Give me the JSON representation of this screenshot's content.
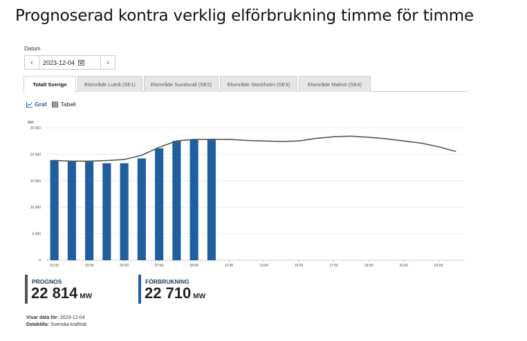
{
  "page": {
    "title": "Prognoserad kontra verklig elförbrukning timme för timme"
  },
  "date_picker": {
    "label": "Datum",
    "value": "2023-12-04",
    "prev_icon": "chevron-left-icon",
    "next_icon": "chevron-right-icon",
    "calendar_icon": "calendar-icon"
  },
  "tabs": [
    {
      "label": "Totalt Sverige",
      "active": true
    },
    {
      "label": "Elområde Luleå (SE1)",
      "active": false
    },
    {
      "label": "Elområde Sundsvall (SE2)",
      "active": false
    },
    {
      "label": "Elområde Stockholm (SE3)",
      "active": false
    },
    {
      "label": "Elområde Malmö (SE4)",
      "active": false
    }
  ],
  "view_toggle": {
    "graph_label": "Graf",
    "table_label": "Tabell",
    "active": "graph"
  },
  "colors": {
    "bar": "#1f5f9e",
    "line": "#555555",
    "grid": "#e3e3e3",
    "active_view": "#1f5f9e"
  },
  "chart_data": {
    "type": "bar",
    "unit_label": "MW",
    "ylim": [
      0,
      25000
    ],
    "y_ticks": [
      "0",
      "5 000",
      "10 000",
      "15 000",
      "20 000",
      "25 000"
    ],
    "x_ticks": [
      "01:00",
      "03:00",
      "05:00",
      "07:00",
      "09:00",
      "11:00",
      "13:00",
      "15:00",
      "17:00",
      "19:00",
      "21:00",
      "23:00"
    ],
    "hours": [
      1,
      2,
      3,
      4,
      5,
      6,
      7,
      8,
      9,
      10,
      11,
      12,
      13,
      14,
      15,
      16,
      17,
      18,
      19,
      20,
      21,
      22,
      23,
      24
    ],
    "series": [
      {
        "values": [
          18900,
          18600,
          18600,
          18300,
          18300,
          19200,
          21100,
          22500,
          22700,
          22710
        ]
      },
      {
        "values": [
          18800,
          18700,
          18700,
          18800,
          19000,
          19800,
          21300,
          22500,
          22800,
          22814,
          22800,
          22600,
          22500,
          22400,
          22500,
          23000,
          23300,
          23400,
          23200,
          22900,
          22500,
          22100,
          21400,
          20500
        ]
      }
    ],
    "grid": true
  },
  "kpis": [
    {
      "label": "PROGNOS",
      "value": "22 814",
      "unit": "MW"
    },
    {
      "label": "FÖRBRUKNING",
      "value": "22 710",
      "unit": "MW"
    }
  ],
  "meta": {
    "shown_label": "Visar data för:",
    "shown_value": "2023-12-04",
    "source_label": "Datakälla:",
    "source_value": "Svenska kraftnät"
  }
}
